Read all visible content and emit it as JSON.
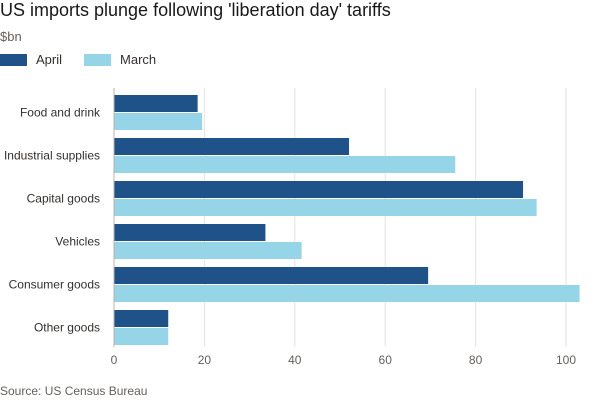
{
  "header": {
    "title": "US imports plunge following 'liberation day' tariffs",
    "subtitle": "$bn"
  },
  "legend": {
    "items": [
      {
        "label": "April",
        "color": "#1e5289"
      },
      {
        "label": "March",
        "color": "#96d4e8"
      }
    ]
  },
  "footer": {
    "source": "Source: US Census Bureau"
  },
  "chart_data": {
    "type": "bar",
    "orientation": "horizontal",
    "title": "US imports plunge following 'liberation day' tariffs",
    "subtitle": "$bn",
    "categories": [
      "Food and drink",
      "Industrial supplies",
      "Capital goods",
      "Vehicles",
      "Consumer goods",
      "Other goods"
    ],
    "series": [
      {
        "name": "April",
        "color": "#1e5289",
        "values": [
          18.5,
          52,
          90.5,
          33.5,
          69.5,
          12
        ]
      },
      {
        "name": "March",
        "color": "#96d4e8",
        "values": [
          19.5,
          75.5,
          93.5,
          41.5,
          103,
          12
        ]
      }
    ],
    "xlim": [
      0,
      103
    ],
    "xticks": [
      0,
      20,
      40,
      60,
      80,
      100
    ],
    "grid": true,
    "legend_position": "top-left"
  }
}
